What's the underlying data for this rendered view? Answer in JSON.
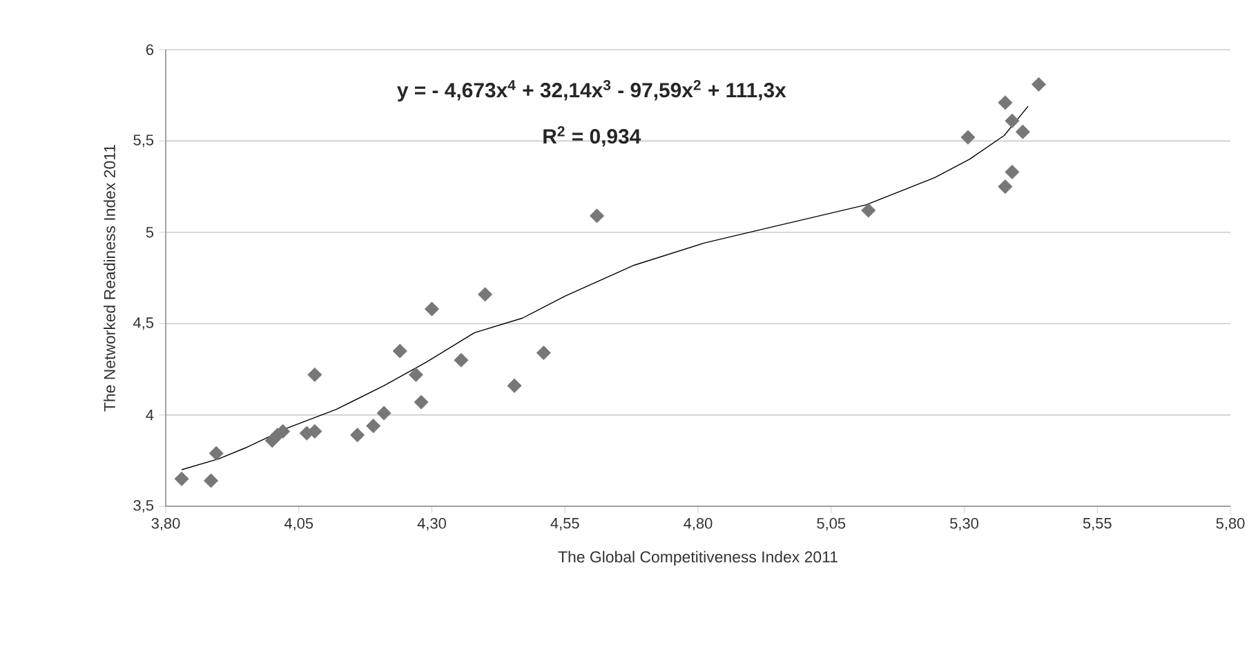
{
  "chart_data": {
    "type": "scatter",
    "xlabel": "The Global Competitiveness Index 2011",
    "ylabel": "The Networked Readiness Index 2011",
    "annotations": [
      "y =  - 4,673x$^{4}$ + 32,14x$^{3}$ - 97,59x$^{2}$ + 111,3x",
      "R$^{2}$ = 0,934"
    ],
    "xlim": [
      3.8,
      5.8
    ],
    "ylim": [
      3.5,
      6
    ],
    "xticks": [
      {
        "value": 3.8,
        "label": "3,80"
      },
      {
        "value": 4.05,
        "label": "4,05"
      },
      {
        "value": 4.3,
        "label": "4,30"
      },
      {
        "value": 4.55,
        "label": "4,55"
      },
      {
        "value": 4.8,
        "label": "4,80"
      },
      {
        "value": 5.05,
        "label": "5,05"
      },
      {
        "value": 5.3,
        "label": "5,30"
      },
      {
        "value": 5.55,
        "label": "5,55"
      },
      {
        "value": 5.8,
        "label": "5,80"
      }
    ],
    "yticks": [
      {
        "value": 3.5,
        "label": "3,5"
      },
      4,
      {
        "value": 4.5,
        "label": "4,5"
      },
      5,
      {
        "value": 5.5,
        "label": "5,5"
      },
      6
    ],
    "grid": "y",
    "marker": "diamond",
    "series": [
      {
        "color": "#777777",
        "x": [
          3.83,
          3.885,
          3.895,
          4.0,
          4.01,
          4.02,
          4.065,
          4.08,
          4.08,
          4.16,
          4.19,
          4.21,
          4.24,
          4.27,
          4.28,
          4.3,
          4.355,
          4.4,
          4.455,
          4.51,
          4.61,
          5.12,
          5.307,
          5.377,
          5.39,
          5.41,
          5.44,
          5.39,
          5.377
        ],
        "values": [
          3.65,
          3.64,
          3.79,
          3.86,
          3.89,
          3.91,
          3.9,
          3.91,
          4.22,
          3.89,
          3.94,
          4.01,
          4.35,
          4.22,
          4.07,
          4.58,
          4.3,
          4.66,
          4.16,
          4.34,
          5.09,
          5.12,
          5.52,
          5.71,
          5.61,
          5.55,
          5.81,
          5.33,
          5.25
        ]
      },
      {
        "type": "line",
        "color": "#000000",
        "marker": "none",
        "x": [
          3.83,
          3.9,
          3.95,
          4.03,
          4.12,
          4.21,
          4.29,
          4.38,
          4.47,
          4.55,
          4.68,
          4.81,
          4.94,
          5.115,
          5.245,
          5.31,
          5.375,
          5.42
        ],
        "values": [
          3.7,
          3.76,
          3.82,
          3.93,
          4.03,
          4.16,
          4.29,
          4.45,
          4.53,
          4.65,
          4.82,
          4.94,
          5.03,
          5.15,
          5.3,
          5.4,
          5.53,
          5.69
        ]
      }
    ]
  }
}
